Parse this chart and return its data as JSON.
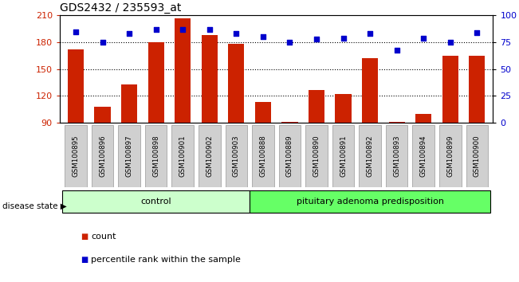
{
  "title": "GDS2432 / 235593_at",
  "categories": [
    "GSM100895",
    "GSM100896",
    "GSM100897",
    "GSM100898",
    "GSM100901",
    "GSM100902",
    "GSM100903",
    "GSM100888",
    "GSM100889",
    "GSM100890",
    "GSM100891",
    "GSM100892",
    "GSM100893",
    "GSM100894",
    "GSM100899",
    "GSM100900"
  ],
  "counts": [
    172,
    108,
    133,
    180,
    207,
    188,
    178,
    113,
    91,
    127,
    122,
    162,
    91,
    100,
    165,
    165
  ],
  "percentile": [
    85,
    75,
    83,
    87,
    87,
    87,
    83,
    80,
    75,
    78,
    79,
    83,
    68,
    79,
    75,
    84
  ],
  "ylim_left": [
    90,
    210
  ],
  "ylim_right": [
    0,
    100
  ],
  "yticks_left": [
    90,
    120,
    150,
    180,
    210
  ],
  "yticks_right": [
    0,
    25,
    50,
    75,
    100
  ],
  "bar_color": "#cc2200",
  "scatter_color": "#0000cc",
  "bg_color": "#ffffff",
  "tick_box_color": "#d0d0d0",
  "control_n": 7,
  "disease_n": 9,
  "control_label": "control",
  "disease_label": "pituitary adenoma predisposition",
  "legend_count_label": "count",
  "legend_pct_label": "percentile rank within the sample",
  "disease_state_label": "disease state",
  "control_color": "#ccffcc",
  "disease_color": "#66ff66"
}
